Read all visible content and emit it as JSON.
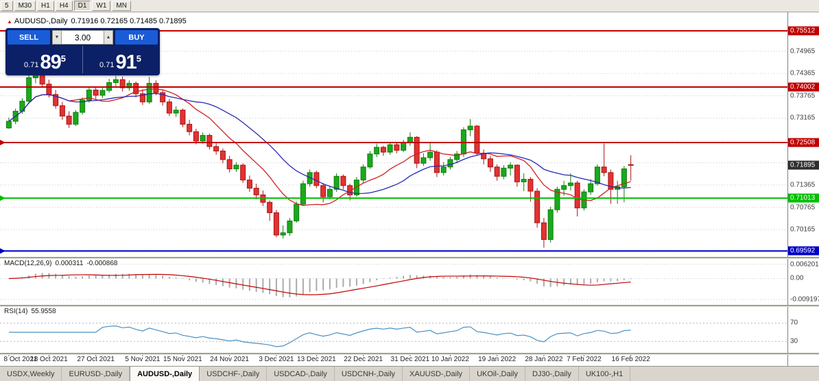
{
  "toolbar": {
    "timeframes": [
      "5",
      "M30",
      "H1",
      "H4",
      "D1",
      "W1",
      "MN"
    ],
    "active": "D1"
  },
  "chart": {
    "symbol_title": "AUDUSD-,Daily",
    "ohlc": "0.71916 0.72165 0.71485 0.71895",
    "trade_widget": {
      "sell_label": "SELL",
      "buy_label": "BUY",
      "quantity": "3.00",
      "sell_price": {
        "prefix": "0.71",
        "big": "89",
        "sup": "5"
      },
      "buy_price": {
        "prefix": "0.71",
        "big": "91",
        "sup": "5"
      },
      "colors": {
        "panel": "#0B2066",
        "button": "#1A5CD6"
      }
    }
  },
  "chart_data": {
    "type": "candlestick",
    "symbol": "AUDUSD",
    "timeframe": "Daily",
    "ylim": [
      0.6943,
      0.7601
    ],
    "colors": {
      "up": "#1CA81C",
      "up_border": "#0E7D0E",
      "down": "#E23232",
      "down_border": "#A81414",
      "grid": "#C9C9C9"
    },
    "ma": [
      {
        "period": 10,
        "color": "#D02020"
      },
      {
        "period": 20,
        "color": "#2828B4"
      }
    ],
    "hlines": [
      {
        "value": 0.75512,
        "color": "#C00000",
        "badge": "0.75512",
        "width": 2,
        "marker": false
      },
      {
        "value": 0.74002,
        "color": "#C00000",
        "badge": "0.74002",
        "width": 2,
        "marker": false
      },
      {
        "value": 0.72508,
        "color": "#C00000",
        "badge": "0.72508",
        "width": 2,
        "marker": true
      },
      {
        "value": 0.71013,
        "color": "#00BE00",
        "badge": "0.71013",
        "width": 2,
        "marker": true
      },
      {
        "value": 0.69592,
        "color": "#0000C8",
        "badge": "0.69592",
        "width": 2,
        "marker": true
      }
    ],
    "current_price": {
      "value": 0.71895,
      "text": "0.71895",
      "bg": "#2F2F2F"
    },
    "price_axis": {
      "plain_labels": [
        {
          "text": "0.74965",
          "value": 0.74965
        },
        {
          "text": "0.74365",
          "value": 0.74365
        },
        {
          "text": "0.73765",
          "value": 0.73765
        },
        {
          "text": "0.73165",
          "value": 0.73165
        },
        {
          "text": "0.71365",
          "value": 0.71365
        },
        {
          "text": "0.70765",
          "value": 0.70765
        },
        {
          "text": "0.70165",
          "value": 0.70165
        }
      ],
      "grid_values": [
        0.74965,
        0.74365,
        0.73765,
        0.73165,
        0.72565,
        0.71965,
        0.71365,
        0.70765,
        0.70165,
        0.69565
      ]
    },
    "x_axis": {
      "labels": [
        {
          "text": "8 Oct 2021",
          "index": 0
        },
        {
          "text": "18 Oct 2021",
          "index": 6
        },
        {
          "text": "27 Oct 2021",
          "index": 13
        },
        {
          "text": "5 Nov 2021",
          "index": 20
        },
        {
          "text": "15 Nov 2021",
          "index": 26
        },
        {
          "text": "24 Nov 2021",
          "index": 33
        },
        {
          "text": "3 Dec 2021",
          "index": 40
        },
        {
          "text": "13 Dec 2021",
          "index": 46
        },
        {
          "text": "22 Dec 2021",
          "index": 53
        },
        {
          "text": "31 Dec 2021",
          "index": 60
        },
        {
          "text": "10 Jan 2022",
          "index": 66
        },
        {
          "text": "19 Jan 2022",
          "index": 73
        },
        {
          "text": "28 Jan 2022",
          "index": 80
        },
        {
          "text": "7 Feb 2022",
          "index": 86
        },
        {
          "text": "16 Feb 2022",
          "index": 93
        }
      ]
    },
    "candles": [
      [
        0.729,
        0.7318,
        0.7288,
        0.7308
      ],
      [
        0.7308,
        0.7342,
        0.73,
        0.7335
      ],
      [
        0.7335,
        0.737,
        0.7328,
        0.7362
      ],
      [
        0.7362,
        0.7432,
        0.7355,
        0.7425
      ],
      [
        0.7425,
        0.7446,
        0.741,
        0.7438
      ],
      [
        0.7438,
        0.7444,
        0.74,
        0.7408
      ],
      [
        0.7408,
        0.742,
        0.7372,
        0.738
      ],
      [
        0.738,
        0.7392,
        0.7342,
        0.735
      ],
      [
        0.735,
        0.736,
        0.7312,
        0.7322
      ],
      [
        0.7322,
        0.7335,
        0.729,
        0.73
      ],
      [
        0.73,
        0.7338,
        0.7295,
        0.7332
      ],
      [
        0.7332,
        0.7372,
        0.7326,
        0.7365
      ],
      [
        0.7365,
        0.74,
        0.7358,
        0.7392
      ],
      [
        0.7392,
        0.7398,
        0.7368,
        0.7378
      ],
      [
        0.7378,
        0.7398,
        0.737,
        0.7391
      ],
      [
        0.7391,
        0.7422,
        0.7385,
        0.7412
      ],
      [
        0.7412,
        0.743,
        0.7402,
        0.742
      ],
      [
        0.742,
        0.7428,
        0.7388,
        0.7398
      ],
      [
        0.7398,
        0.7418,
        0.739,
        0.741
      ],
      [
        0.741,
        0.7415,
        0.7372,
        0.7382
      ],
      [
        0.7382,
        0.7395,
        0.7352,
        0.736
      ],
      [
        0.736,
        0.7427,
        0.7355,
        0.741
      ],
      [
        0.741,
        0.7418,
        0.7378,
        0.7385
      ],
      [
        0.7385,
        0.7392,
        0.735,
        0.736
      ],
      [
        0.736,
        0.7368,
        0.7322,
        0.733
      ],
      [
        0.733,
        0.7348,
        0.732,
        0.7338
      ],
      [
        0.7338,
        0.7342,
        0.7292,
        0.73
      ],
      [
        0.73,
        0.7312,
        0.727,
        0.728
      ],
      [
        0.728,
        0.7288,
        0.7246,
        0.7255
      ],
      [
        0.7255,
        0.7278,
        0.7248,
        0.727
      ],
      [
        0.727,
        0.7275,
        0.7232,
        0.724
      ],
      [
        0.724,
        0.7252,
        0.7218,
        0.7228
      ],
      [
        0.7228,
        0.7235,
        0.7195,
        0.7205
      ],
      [
        0.7205,
        0.7215,
        0.717,
        0.718
      ],
      [
        0.718,
        0.7198,
        0.7172,
        0.719
      ],
      [
        0.719,
        0.7195,
        0.7142,
        0.715
      ],
      [
        0.715,
        0.7162,
        0.7118,
        0.7128
      ],
      [
        0.7128,
        0.714,
        0.7098,
        0.711
      ],
      [
        0.711,
        0.7122,
        0.708,
        0.709
      ],
      [
        0.709,
        0.7095,
        0.704,
        0.7062
      ],
      [
        0.7062,
        0.707,
        0.6996,
        0.7002
      ],
      [
        0.7002,
        0.7028,
        0.6993,
        0.7008
      ],
      [
        0.7008,
        0.7048,
        0.7,
        0.704
      ],
      [
        0.704,
        0.7092,
        0.7035,
        0.7085
      ],
      [
        0.7085,
        0.7148,
        0.708,
        0.714
      ],
      [
        0.714,
        0.7178,
        0.7132,
        0.717
      ],
      [
        0.717,
        0.7175,
        0.7128,
        0.7135
      ],
      [
        0.7135,
        0.7142,
        0.709,
        0.7105
      ],
      [
        0.7105,
        0.7132,
        0.7098,
        0.7125
      ],
      [
        0.7125,
        0.7168,
        0.7118,
        0.716
      ],
      [
        0.716,
        0.7165,
        0.7125,
        0.7135
      ],
      [
        0.7135,
        0.714,
        0.7095,
        0.711
      ],
      [
        0.711,
        0.7158,
        0.7105,
        0.715
      ],
      [
        0.715,
        0.7192,
        0.7142,
        0.7185
      ],
      [
        0.7185,
        0.7228,
        0.718,
        0.722
      ],
      [
        0.722,
        0.7248,
        0.7212,
        0.7238
      ],
      [
        0.7238,
        0.7242,
        0.7215,
        0.7225
      ],
      [
        0.7225,
        0.725,
        0.7218,
        0.7245
      ],
      [
        0.7245,
        0.7252,
        0.7222,
        0.723
      ],
      [
        0.723,
        0.7258,
        0.7225,
        0.725
      ],
      [
        0.725,
        0.7278,
        0.7242,
        0.7265
      ],
      [
        0.7265,
        0.7268,
        0.7182,
        0.7195
      ],
      [
        0.7195,
        0.7222,
        0.7188,
        0.721
      ],
      [
        0.721,
        0.725,
        0.7202,
        0.7225
      ],
      [
        0.7225,
        0.723,
        0.7158,
        0.717
      ],
      [
        0.717,
        0.7198,
        0.7162,
        0.7185
      ],
      [
        0.7185,
        0.7212,
        0.7178,
        0.7205
      ],
      [
        0.7205,
        0.7228,
        0.7195,
        0.722
      ],
      [
        0.722,
        0.7292,
        0.7212,
        0.7285
      ],
      [
        0.7285,
        0.7314,
        0.7268,
        0.7295
      ],
      [
        0.7295,
        0.7298,
        0.7215,
        0.7222
      ],
      [
        0.7222,
        0.7232,
        0.7192,
        0.7207
      ],
      [
        0.7207,
        0.7215,
        0.7172,
        0.7185
      ],
      [
        0.7185,
        0.7192,
        0.7148,
        0.716
      ],
      [
        0.716,
        0.719,
        0.7152,
        0.7182
      ],
      [
        0.7182,
        0.7198,
        0.7162,
        0.719
      ],
      [
        0.719,
        0.7192,
        0.7132,
        0.7145
      ],
      [
        0.7145,
        0.7168,
        0.712,
        0.7152
      ],
      [
        0.7152,
        0.7158,
        0.7092,
        0.712
      ],
      [
        0.712,
        0.7128,
        0.7022,
        0.7035
      ],
      [
        0.7035,
        0.7048,
        0.6968,
        0.699
      ],
      [
        0.699,
        0.7078,
        0.6982,
        0.707
      ],
      [
        0.707,
        0.7132,
        0.7062,
        0.7125
      ],
      [
        0.7125,
        0.7148,
        0.7108,
        0.7135
      ],
      [
        0.7135,
        0.7168,
        0.7122,
        0.7142
      ],
      [
        0.7142,
        0.7148,
        0.7052,
        0.7075
      ],
      [
        0.7075,
        0.7125,
        0.7068,
        0.7118
      ],
      [
        0.7118,
        0.7152,
        0.711,
        0.714
      ],
      [
        0.714,
        0.7192,
        0.7135,
        0.7185
      ],
      [
        0.7185,
        0.7248,
        0.716,
        0.717
      ],
      [
        0.717,
        0.7178,
        0.7086,
        0.7125
      ],
      [
        0.7125,
        0.7148,
        0.7086,
        0.7132
      ],
      [
        0.7132,
        0.7188,
        0.709,
        0.718
      ],
      [
        0.71916,
        0.72165,
        0.71485,
        0.71895
      ]
    ],
    "macd": {
      "label": "MACD(12,26,9)",
      "value_main": "0.000311",
      "value_signal": "-0.000868",
      "ylim": [
        -0.0115,
        0.0085
      ],
      "axis_labels": [
        {
          "text": "0.006201",
          "value": 0.006201
        },
        {
          "text": "0.00",
          "value": 0
        },
        {
          "text": "-0.009197",
          "value": -0.009197
        }
      ],
      "colors": {
        "hist": "#ABABAB",
        "signal": "#C00000"
      }
    },
    "rsi": {
      "label": "RSI(14)",
      "value": "55.9558",
      "ylim": [
        5,
        105
      ],
      "color": "#4A90C2",
      "levels": [
        {
          "text": "70",
          "value": 70
        },
        {
          "text": "30",
          "value": 30
        }
      ]
    }
  },
  "tabs": [
    {
      "label": "USDX,Weekly",
      "active": false
    },
    {
      "label": "EURUSD-,Daily",
      "active": false
    },
    {
      "label": "AUDUSD-,Daily",
      "active": true
    },
    {
      "label": "USDCHF-,Daily",
      "active": false
    },
    {
      "label": "USDCAD-,Daily",
      "active": false
    },
    {
      "label": "USDCNH-,Daily",
      "active": false
    },
    {
      "label": "XAUUSD-,Daily",
      "active": false
    },
    {
      "label": "UKOil-,Daily",
      "active": false
    },
    {
      "label": "DJ30-,Daily",
      "active": false
    },
    {
      "label": "UK100-,H1",
      "active": false
    }
  ]
}
